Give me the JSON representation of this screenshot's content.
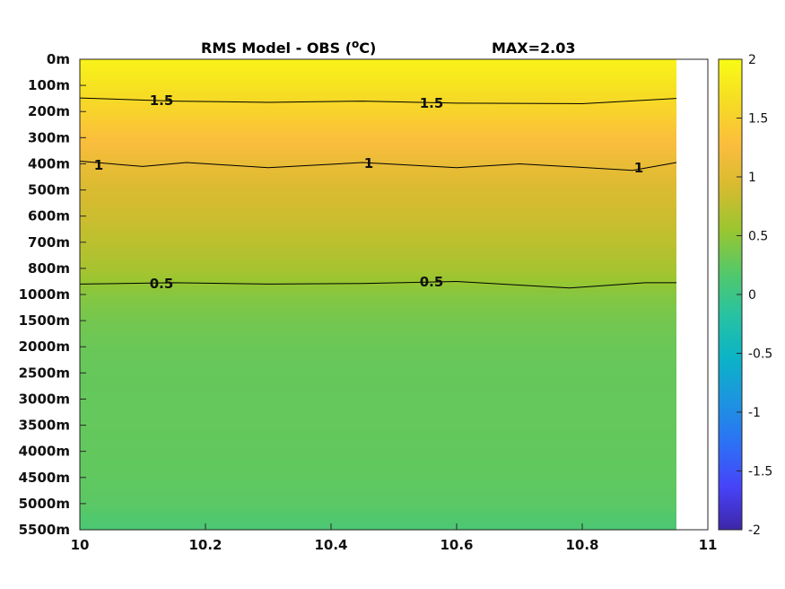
{
  "chart_data": {
    "type": "heatmap",
    "title": "RMS Model - OBS (",
    "title_unit_sup": "o",
    "title_unit_tail": "C)",
    "max_label": "MAX=2.03",
    "x_ticks": [
      "10",
      "10.2",
      "10.4",
      "10.6",
      "10.8",
      "11"
    ],
    "x_range": [
      10,
      11
    ],
    "x_data_extent": [
      10,
      10.95
    ],
    "y_levels": [
      "0m",
      "100m",
      "200m",
      "300m",
      "400m",
      "500m",
      "600m",
      "700m",
      "800m",
      "1000m",
      "1500m",
      "2000m",
      "2500m",
      "3000m",
      "3500m",
      "4000m",
      "4500m",
      "5000m",
      "5500m"
    ],
    "values_by_level": [
      1.9,
      1.72,
      1.52,
      1.3,
      1.1,
      0.95,
      0.85,
      0.75,
      0.63,
      0.45,
      0.35,
      0.3,
      0.28,
      0.27,
      0.27,
      0.26,
      0.25,
      0.22,
      0.12
    ],
    "contours": [
      {
        "level": "1.5",
        "value": 1.5,
        "points": [
          [
            10.0,
            1.48
          ],
          [
            10.15,
            1.6
          ],
          [
            10.3,
            1.65
          ],
          [
            10.45,
            1.6
          ],
          [
            10.6,
            1.68
          ],
          [
            10.8,
            1.7
          ],
          [
            10.95,
            1.5
          ]
        ],
        "labels": [
          [
            10.13,
            1.58
          ],
          [
            10.56,
            1.68
          ]
        ]
      },
      {
        "level": "1",
        "value": 1,
        "points": [
          [
            10.0,
            3.9
          ],
          [
            10.1,
            4.1
          ],
          [
            10.17,
            3.95
          ],
          [
            10.3,
            4.15
          ],
          [
            10.45,
            3.95
          ],
          [
            10.6,
            4.15
          ],
          [
            10.7,
            4.0
          ],
          [
            10.88,
            4.25
          ],
          [
            10.95,
            3.95
          ]
        ],
        "labels": [
          [
            10.03,
            4.05
          ],
          [
            10.46,
            3.98
          ],
          [
            10.89,
            4.15
          ]
        ]
      },
      {
        "level": "0.5",
        "value": 0.5,
        "points": [
          [
            10.0,
            8.6
          ],
          [
            10.15,
            8.55
          ],
          [
            10.3,
            8.6
          ],
          [
            10.45,
            8.58
          ],
          [
            10.6,
            8.5
          ],
          [
            10.78,
            8.75
          ],
          [
            10.9,
            8.55
          ],
          [
            10.95,
            8.55
          ]
        ],
        "labels": [
          [
            10.13,
            8.58
          ],
          [
            10.56,
            8.52
          ]
        ]
      }
    ],
    "colorbar": {
      "range": [
        -2,
        2
      ],
      "ticks": [
        "2",
        "1.5",
        "1",
        "0.5",
        "0",
        "-0.5",
        "-1",
        "-1.5",
        "-2"
      ],
      "colormap": [
        "#3e26a8",
        "#4743f8",
        "#2d70f5",
        "#1d94e0",
        "#0bb3c7",
        "#27c2a3",
        "#53c86a",
        "#99c630",
        "#d6bb2f",
        "#fbbd3d",
        "#f6dc24",
        "#f9fb15"
      ]
    },
    "grid": false,
    "legend": "colorbar-right"
  }
}
